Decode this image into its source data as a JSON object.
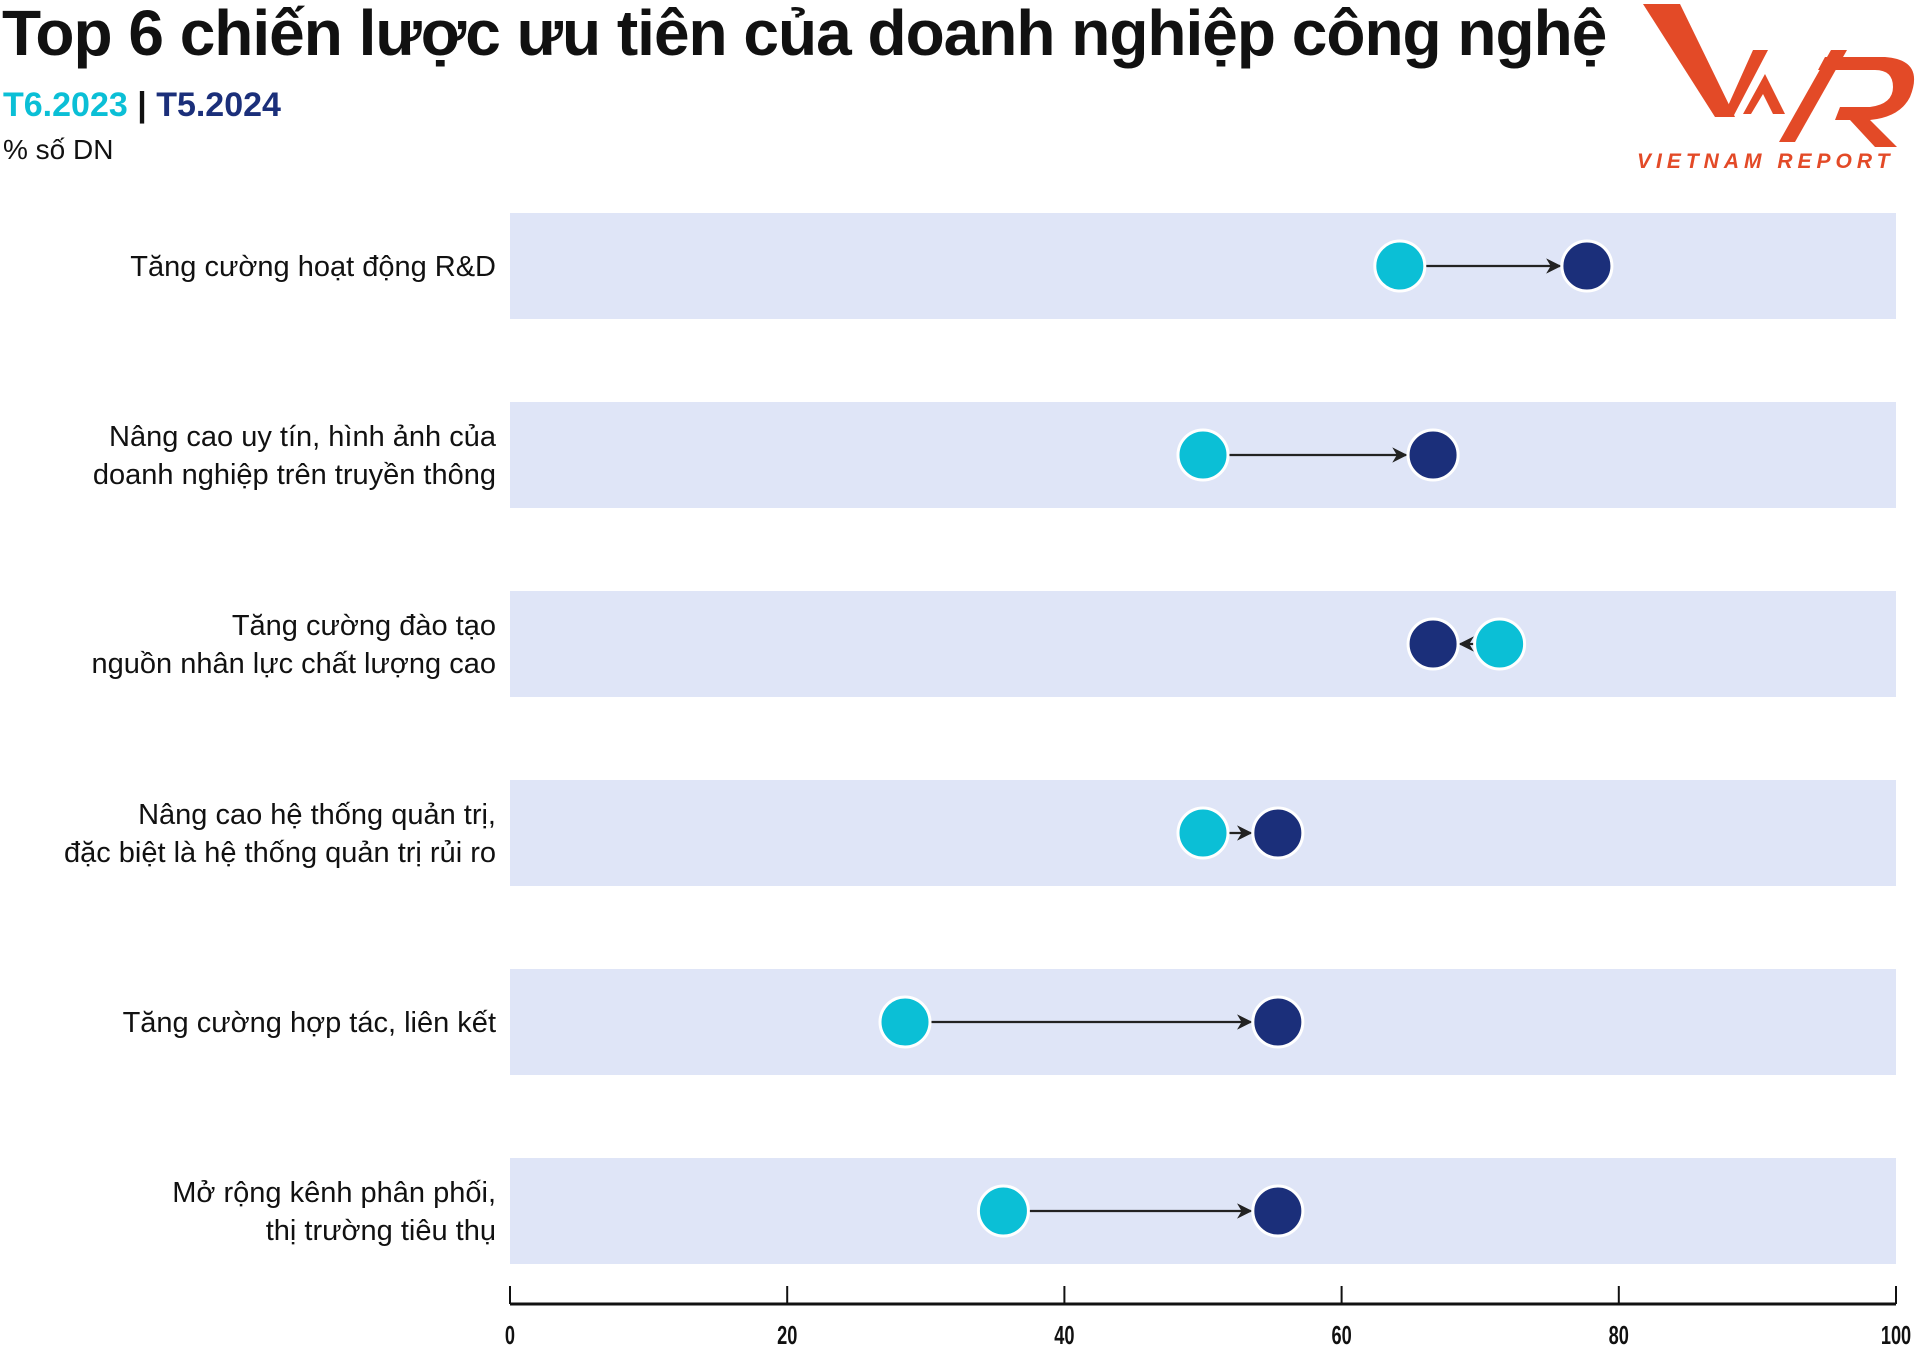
{
  "chart_data": {
    "type": "dumbbell",
    "title": "Top 6 chiến lược ưu tiên của doanh nghiệp công nghệ",
    "unit_label": "% số DN",
    "legend_placement": "top-left",
    "series": [
      {
        "name": "T6.2023",
        "color": "#0bbfd6"
      },
      {
        "name": "T5.2024",
        "color": "#1b2f7a"
      }
    ],
    "legend_separator": "|",
    "categories": [
      [
        "Tăng cường hoạt động R&D"
      ],
      [
        "Nâng cao uy tín, hình ảnh của",
        "doanh nghiệp trên truyền thông"
      ],
      [
        "Tăng cường đào tạo",
        "nguồn nhân lực chất lượng cao"
      ],
      [
        "Nâng cao hệ thống quản trị,",
        "đặc biệt là hệ thống quản trị rủi ro"
      ],
      [
        "Tăng cường hợp tác, liên kết"
      ],
      [
        "Mở rộng kênh phân phối,",
        "thị trường tiêu thụ"
      ]
    ],
    "values_2023": [
      64.2,
      50.0,
      71.4,
      50.0,
      28.5,
      35.6
    ],
    "values_2024": [
      77.7,
      66.6,
      66.6,
      55.4,
      55.4,
      55.4
    ],
    "xlim": [
      0,
      100
    ],
    "xticks": [
      "0",
      "20",
      "40",
      "60",
      "80",
      "100"
    ],
    "band_color": "#dfe5f7",
    "grid": false
  },
  "logo": {
    "text": "VNR",
    "subtitle": "VIETNAM REPORT",
    "color": "#e34a27"
  }
}
